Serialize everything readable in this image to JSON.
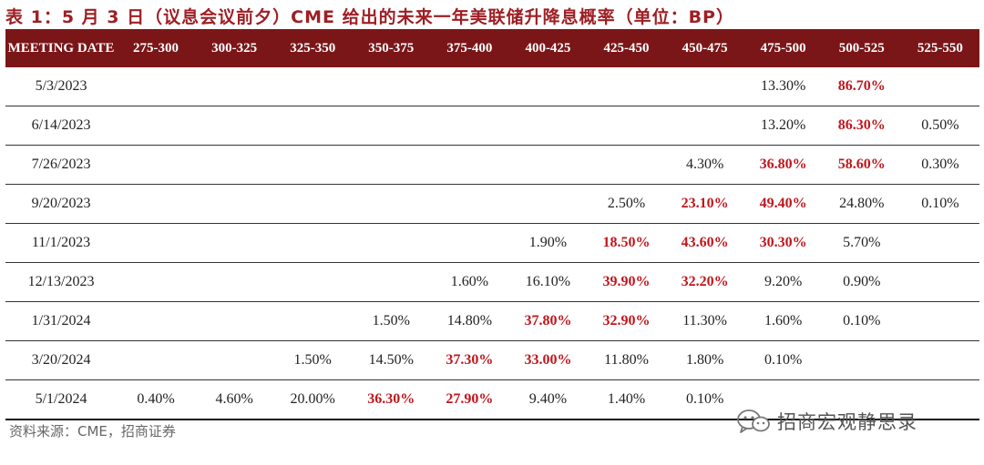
{
  "title": "表 1：5 月 3 日（议息会议前夕）CME 给出的未来一年美联储升降息概率（单位：BP）",
  "header": {
    "meeting_date": "MEETING DATE",
    "columns": [
      "275-300",
      "300-325",
      "325-350",
      "350-375",
      "375-400",
      "400-425",
      "425-450",
      "450-475",
      "475-500",
      "500-525",
      "525-550"
    ]
  },
  "rows": [
    {
      "date": "5/3/2023",
      "cells": [
        "",
        "",
        "",
        "",
        "",
        "",
        "",
        "",
        "13.30%",
        "86.70%",
        ""
      ],
      "hl": [
        false,
        false,
        false,
        false,
        false,
        false,
        false,
        false,
        false,
        true,
        false
      ]
    },
    {
      "date": "6/14/2023",
      "cells": [
        "",
        "",
        "",
        "",
        "",
        "",
        "",
        "",
        "13.20%",
        "86.30%",
        "0.50%"
      ],
      "hl": [
        false,
        false,
        false,
        false,
        false,
        false,
        false,
        false,
        false,
        true,
        false
      ]
    },
    {
      "date": "7/26/2023",
      "cells": [
        "",
        "",
        "",
        "",
        "",
        "",
        "",
        "4.30%",
        "36.80%",
        "58.60%",
        "0.30%"
      ],
      "hl": [
        false,
        false,
        false,
        false,
        false,
        false,
        false,
        false,
        true,
        true,
        false
      ]
    },
    {
      "date": "9/20/2023",
      "cells": [
        "",
        "",
        "",
        "",
        "",
        "",
        "2.50%",
        "23.10%",
        "49.40%",
        "24.80%",
        "0.10%"
      ],
      "hl": [
        false,
        false,
        false,
        false,
        false,
        false,
        false,
        true,
        true,
        false,
        false
      ]
    },
    {
      "date": "11/1/2023",
      "cells": [
        "",
        "",
        "",
        "",
        "",
        "1.90%",
        "18.50%",
        "43.60%",
        "30.30%",
        "5.70%",
        ""
      ],
      "hl": [
        false,
        false,
        false,
        false,
        false,
        false,
        true,
        true,
        true,
        false,
        false
      ]
    },
    {
      "date": "12/13/2023",
      "cells": [
        "",
        "",
        "",
        "",
        "1.60%",
        "16.10%",
        "39.90%",
        "32.20%",
        "9.20%",
        "0.90%",
        ""
      ],
      "hl": [
        false,
        false,
        false,
        false,
        false,
        false,
        true,
        true,
        false,
        false,
        false
      ]
    },
    {
      "date": "1/31/2024",
      "cells": [
        "",
        "",
        "",
        "1.50%",
        "14.80%",
        "37.80%",
        "32.90%",
        "11.30%",
        "1.60%",
        "0.10%",
        ""
      ],
      "hl": [
        false,
        false,
        false,
        false,
        false,
        true,
        true,
        false,
        false,
        false,
        false
      ]
    },
    {
      "date": "3/20/2024",
      "cells": [
        "",
        "",
        "1.50%",
        "14.50%",
        "37.30%",
        "33.00%",
        "11.80%",
        "1.80%",
        "0.10%",
        "",
        ""
      ],
      "hl": [
        false,
        false,
        false,
        false,
        true,
        true,
        false,
        false,
        false,
        false,
        false
      ]
    },
    {
      "date": "5/1/2024",
      "cells": [
        "0.40%",
        "4.60%",
        "20.00%",
        "36.30%",
        "27.90%",
        "9.40%",
        "1.40%",
        "0.10%",
        "",
        "",
        ""
      ],
      "hl": [
        false,
        false,
        false,
        true,
        true,
        false,
        false,
        false,
        false,
        false,
        false
      ]
    }
  ],
  "source": "资料来源：CME，招商证券",
  "brand": {
    "text": "招商宏观静思录",
    "icon": "wechat-icon"
  }
}
